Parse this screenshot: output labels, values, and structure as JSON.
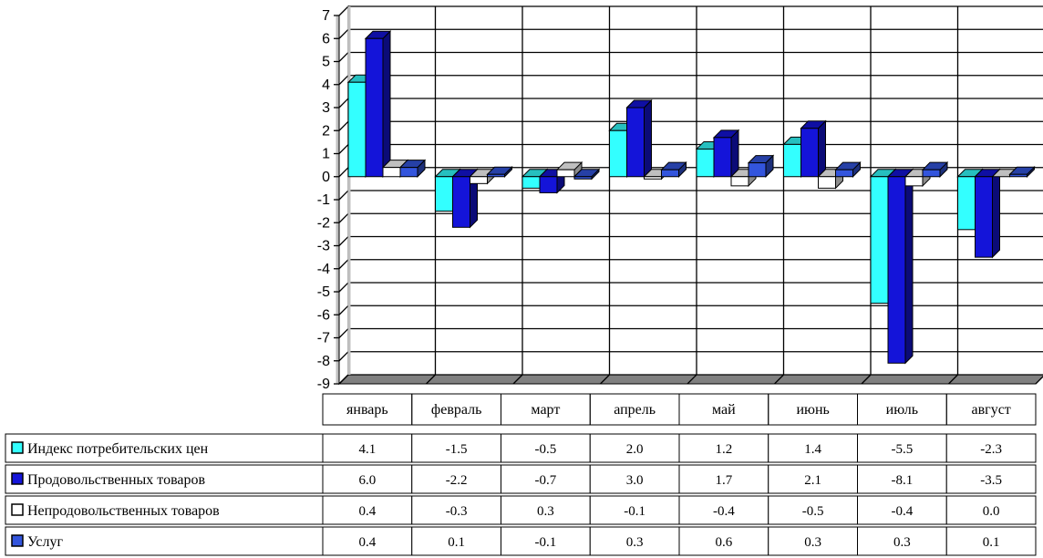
{
  "chart_data": {
    "type": "bar",
    "categories": [
      "январь",
      "февраль",
      "март",
      "апрель",
      "май",
      "июнь",
      "июль",
      "август"
    ],
    "series": [
      {
        "name": "Индекс потребительских цен",
        "color": "#33ffff",
        "values": [
          "4.1",
          "-1.5",
          "-0.5",
          "2.0",
          "1.2",
          "1.4",
          "-5.5",
          "-2.3"
        ]
      },
      {
        "name": "Продовольственных товаров",
        "color": "#1414d9",
        "values": [
          "6.0",
          "-2.2",
          "-0.7",
          "3.0",
          "1.7",
          "2.1",
          "-8.1",
          "-3.5"
        ]
      },
      {
        "name": "Непродовольственных товаров",
        "color": "#ffffff",
        "values": [
          "0.4",
          "-0.3",
          "0.3",
          "-0.1",
          "-0.4",
          "-0.5",
          "-0.4",
          "0.0"
        ]
      },
      {
        "name": "Услуг",
        "color": "#3355dd",
        "values": [
          "0.4",
          "0.1",
          "-0.1",
          "0.3",
          "0.6",
          "0.3",
          "0.3",
          "0.1"
        ]
      }
    ],
    "ylim": [
      -9,
      7
    ],
    "yticks": [
      "7",
      "6",
      "5",
      "4",
      "3",
      "2",
      "1",
      "0",
      "-1",
      "-2",
      "-3",
      "-4",
      "-5",
      "-6",
      "-7",
      "-8",
      "-9"
    ],
    "grid": true,
    "legend": "data table below chart"
  }
}
